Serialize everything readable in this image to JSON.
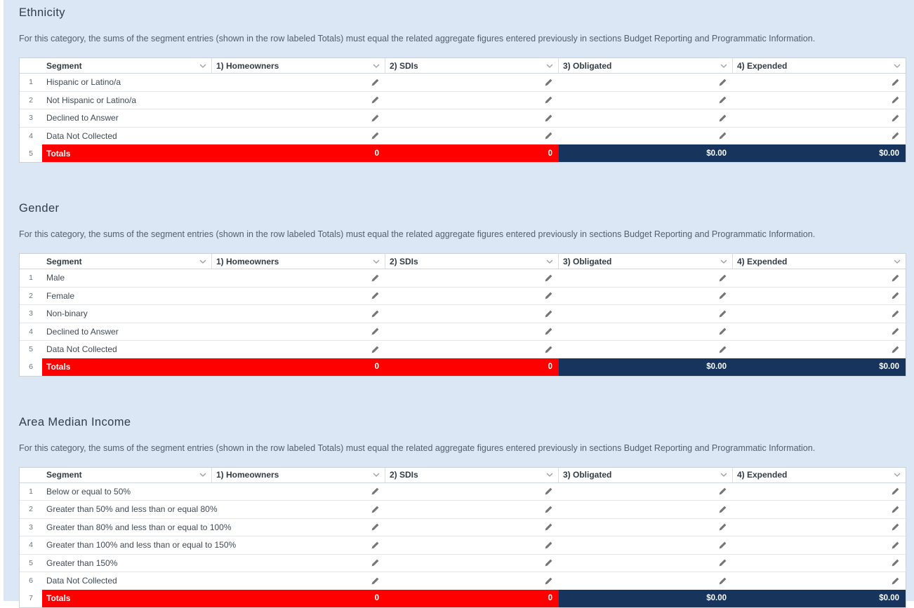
{
  "sections": [
    {
      "title": "Ethnicity",
      "description": "For this category, the sums of the segment entries (shown in the row labeled Totals) must equal the related aggregate figures entered previously in sections Budget Reporting and Programmatic Information.",
      "columns": [
        "Segment",
        "1) Homeowners",
        "2) SDIs",
        "3) Obligated",
        "4) Expended"
      ],
      "rows": [
        {
          "num": "1",
          "segment": "Hispanic or Latino/a"
        },
        {
          "num": "2",
          "segment": "Not Hispanic or Latino/a"
        },
        {
          "num": "3",
          "segment": "Declined to Answer"
        },
        {
          "num": "4",
          "segment": "Data Not Collected"
        }
      ],
      "totals": {
        "num": "5",
        "label": "Totals",
        "homeowners": "0",
        "sdis": "0",
        "obligated": "$0.00",
        "expended": "$0.00"
      }
    },
    {
      "title": "Gender",
      "description": "For this category, the sums of the segment entries (shown in the row labeled Totals) must equal the related aggregate figures entered previously in sections Budget Reporting and Programmatic Information.",
      "columns": [
        "Segment",
        "1) Homeowners",
        "2) SDIs",
        "3) Obligated",
        "4) Expended"
      ],
      "rows": [
        {
          "num": "1",
          "segment": "Male"
        },
        {
          "num": "2",
          "segment": "Female"
        },
        {
          "num": "3",
          "segment": "Non-binary"
        },
        {
          "num": "4",
          "segment": "Declined to Answer"
        },
        {
          "num": "5",
          "segment": "Data Not Collected"
        }
      ],
      "totals": {
        "num": "6",
        "label": "Totals",
        "homeowners": "0",
        "sdis": "0",
        "obligated": "$0.00",
        "expended": "$0.00"
      }
    },
    {
      "title": "Area Median Income",
      "description": "For this category, the sums of the segment entries (shown in the row labeled Totals) must equal the related aggregate figures entered previously in sections Budget Reporting and Programmatic Information.",
      "columns": [
        "Segment",
        "1) Homeowners",
        "2) SDIs",
        "3) Obligated",
        "4) Expended"
      ],
      "rows": [
        {
          "num": "1",
          "segment": "Below or equal to 50%"
        },
        {
          "num": "2",
          "segment": "Greater than 50% and less than or equal 80%"
        },
        {
          "num": "3",
          "segment": "Greater than 80% and less than or equal to 100%"
        },
        {
          "num": "4",
          "segment": "Greater than 100% and less than or equal to 150%"
        },
        {
          "num": "5",
          "segment": "Greater than 150%"
        },
        {
          "num": "6",
          "segment": "Data Not Collected"
        }
      ],
      "totals": {
        "num": "7",
        "label": "Totals",
        "homeowners": "0",
        "sdis": "0",
        "obligated": "$0.00",
        "expended": "$0.00"
      }
    }
  ],
  "icons": {
    "pencil": "pencil-icon",
    "chevron": "chevron-down-icon"
  },
  "colors": {
    "page_background": "#dbe7f5",
    "totals_red": "#fe0000",
    "totals_navy": "#17345c"
  }
}
